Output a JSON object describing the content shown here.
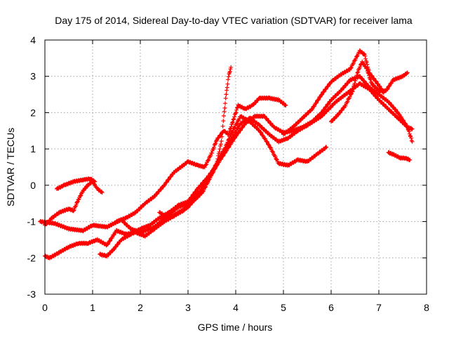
{
  "chart_data": {
    "type": "scatter",
    "title": "Day 175 of 2014, Sidereal Day-to-day VTEC variation (SDTVAR) for receiver lama",
    "xlabel": "GPS time / hours",
    "ylabel": "SDTVAR / TECUs",
    "xlim": [
      0,
      8
    ],
    "ylim": [
      -3,
      4
    ],
    "x_ticks": [
      0,
      1,
      2,
      3,
      4,
      5,
      6,
      7,
      8
    ],
    "y_ticks": [
      -3,
      -2,
      -1,
      0,
      1,
      2,
      3,
      4
    ],
    "grid": true,
    "marker": "plus",
    "color": "#ff0000",
    "series": [
      {
        "points": [
          [
            -0.1,
            -1.0
          ],
          [
            0.2,
            -1.05
          ],
          [
            0.5,
            -1.2
          ],
          [
            0.8,
            -1.25
          ],
          [
            1.0,
            -1.1
          ],
          [
            1.3,
            -1.15
          ],
          [
            1.6,
            -0.95
          ],
          [
            1.8,
            -1.2
          ],
          [
            2.0,
            -1.3
          ],
          [
            2.3,
            -1.15
          ],
          [
            2.6,
            -0.8
          ],
          [
            2.8,
            -0.6
          ],
          [
            3.0,
            -0.5
          ],
          [
            3.3,
            -0.1
          ],
          [
            3.5,
            0.35
          ],
          [
            3.7,
            0.85
          ],
          [
            3.9,
            1.25
          ],
          [
            4.1,
            1.7
          ],
          [
            4.3,
            1.85
          ],
          [
            4.5,
            1.65
          ],
          [
            4.7,
            1.4
          ],
          [
            4.9,
            1.2
          ],
          [
            5.1,
            1.3
          ],
          [
            5.3,
            1.5
          ],
          [
            5.5,
            1.65
          ],
          [
            5.8,
            1.9
          ],
          [
            6.1,
            2.3
          ],
          [
            6.4,
            2.6
          ],
          [
            6.6,
            2.8
          ],
          [
            6.8,
            2.65
          ],
          [
            7.0,
            2.35
          ],
          [
            7.2,
            2.1
          ],
          [
            7.4,
            1.85
          ],
          [
            7.6,
            1.6
          ],
          [
            7.7,
            1.55
          ]
        ]
      },
      {
        "points": [
          [
            0.0,
            -1.95
          ],
          [
            0.1,
            -2.0
          ],
          [
            0.3,
            -1.85
          ],
          [
            0.5,
            -1.7
          ],
          [
            0.7,
            -1.6
          ],
          [
            0.9,
            -1.6
          ],
          [
            1.1,
            -1.5
          ],
          [
            1.3,
            -1.65
          ],
          [
            1.5,
            -1.25
          ],
          [
            1.7,
            -1.35
          ],
          [
            1.9,
            -1.3
          ],
          [
            2.1,
            -1.4
          ],
          [
            2.3,
            -1.2
          ],
          [
            2.5,
            -1.0
          ],
          [
            2.7,
            -0.85
          ],
          [
            2.9,
            -0.7
          ],
          [
            3.1,
            -0.45
          ],
          [
            3.3,
            -0.2
          ],
          [
            3.5,
            0.3
          ],
          [
            3.7,
            0.8
          ],
          [
            3.9,
            1.4
          ],
          [
            4.1,
            1.9
          ],
          [
            4.3,
            1.75
          ],
          [
            4.5,
            1.5
          ],
          [
            4.7,
            1.1
          ],
          [
            4.9,
            0.6
          ],
          [
            5.1,
            0.55
          ],
          [
            5.3,
            0.7
          ],
          [
            5.5,
            0.65
          ],
          [
            5.7,
            0.85
          ],
          [
            5.9,
            1.05
          ]
        ]
      },
      {
        "points": [
          [
            0.0,
            -1.1
          ],
          [
            0.15,
            -0.9
          ],
          [
            0.3,
            -0.75
          ],
          [
            0.5,
            -0.65
          ],
          [
            0.6,
            -0.7
          ],
          [
            0.7,
            -0.4
          ],
          [
            0.8,
            -0.15
          ],
          [
            0.9,
            0.0
          ],
          [
            1.0,
            0.1
          ],
          [
            1.1,
            -0.1
          ],
          [
            1.2,
            -0.2
          ]
        ]
      },
      {
        "points": [
          [
            0.25,
            -0.1
          ],
          [
            0.4,
            0.0
          ],
          [
            0.6,
            0.1
          ],
          [
            0.8,
            0.15
          ],
          [
            0.95,
            0.18
          ],
          [
            1.05,
            0.1
          ]
        ]
      },
      {
        "points": [
          [
            1.15,
            -1.9
          ],
          [
            1.3,
            -1.95
          ],
          [
            1.45,
            -1.75
          ],
          [
            1.6,
            -1.5
          ],
          [
            1.8,
            -1.35
          ],
          [
            2.0,
            -1.2
          ],
          [
            2.2,
            -1.1
          ],
          [
            2.4,
            -0.9
          ],
          [
            2.6,
            -0.75
          ],
          [
            2.8,
            -0.55
          ],
          [
            3.0,
            -0.45
          ],
          [
            3.2,
            -0.1
          ],
          [
            3.4,
            0.2
          ],
          [
            3.6,
            0.55
          ],
          [
            3.8,
            0.95
          ],
          [
            4.0,
            1.35
          ],
          [
            4.2,
            1.7
          ],
          [
            4.4,
            1.9
          ],
          [
            4.6,
            1.9
          ],
          [
            4.8,
            1.6
          ],
          [
            5.0,
            1.45
          ],
          [
            5.2,
            1.5
          ],
          [
            5.4,
            1.6
          ],
          [
            5.6,
            1.75
          ],
          [
            5.8,
            2.0
          ],
          [
            6.0,
            2.35
          ],
          [
            6.2,
            2.6
          ],
          [
            6.4,
            2.9
          ],
          [
            6.6,
            3.0
          ],
          [
            6.8,
            2.7
          ],
          [
            7.0,
            2.5
          ],
          [
            7.2,
            2.3
          ],
          [
            7.4,
            2.0
          ],
          [
            7.6,
            1.6
          ],
          [
            7.7,
            1.2
          ]
        ]
      },
      {
        "points": [
          [
            1.5,
            -1.0
          ],
          [
            1.7,
            -0.9
          ],
          [
            1.9,
            -0.75
          ],
          [
            2.1,
            -0.5
          ],
          [
            2.3,
            -0.3
          ],
          [
            2.5,
            0.0
          ],
          [
            2.7,
            0.35
          ],
          [
            2.9,
            0.55
          ],
          [
            3.0,
            0.65
          ],
          [
            3.2,
            0.55
          ],
          [
            3.35,
            0.5
          ],
          [
            3.5,
            0.9
          ],
          [
            3.6,
            1.25
          ],
          [
            3.75,
            1.5
          ],
          [
            3.85,
            1.4
          ],
          [
            3.95,
            1.8
          ],
          [
            4.05,
            2.2
          ],
          [
            4.2,
            2.1
          ],
          [
            4.35,
            2.2
          ],
          [
            4.5,
            2.4
          ],
          [
            4.7,
            2.4
          ],
          [
            4.9,
            2.35
          ],
          [
            5.05,
            2.2
          ]
        ]
      },
      {
        "points": [
          [
            2.4,
            -0.75
          ],
          [
            2.6,
            -0.9
          ],
          [
            2.8,
            -0.75
          ],
          [
            3.0,
            -0.6
          ],
          [
            3.2,
            -0.3
          ],
          [
            3.4,
            0.1
          ],
          [
            3.6,
            0.6
          ],
          [
            3.7,
            1.2
          ],
          [
            3.75,
            1.9
          ],
          [
            3.8,
            2.5
          ],
          [
            3.85,
            3.0
          ],
          [
            3.9,
            3.25
          ]
        ]
      },
      {
        "points": [
          [
            5.0,
            1.4
          ],
          [
            5.2,
            1.6
          ],
          [
            5.4,
            1.85
          ],
          [
            5.6,
            2.1
          ],
          [
            5.8,
            2.5
          ],
          [
            6.0,
            2.85
          ],
          [
            6.2,
            3.05
          ],
          [
            6.4,
            3.2
          ],
          [
            6.6,
            3.7
          ],
          [
            6.7,
            3.6
          ],
          [
            6.8,
            3.1
          ],
          [
            7.0,
            2.75
          ],
          [
            7.1,
            2.55
          ]
        ]
      },
      {
        "points": [
          [
            6.0,
            1.75
          ],
          [
            6.15,
            1.95
          ],
          [
            6.3,
            2.2
          ],
          [
            6.45,
            2.6
          ],
          [
            6.55,
            3.1
          ],
          [
            6.65,
            3.4
          ],
          [
            6.75,
            3.2
          ],
          [
            6.85,
            2.8
          ],
          [
            7.0,
            2.6
          ],
          [
            7.15,
            2.6
          ],
          [
            7.3,
            2.9
          ],
          [
            7.5,
            3.0
          ],
          [
            7.6,
            3.1
          ]
        ]
      },
      {
        "points": [
          [
            7.2,
            0.9
          ],
          [
            7.3,
            0.85
          ],
          [
            7.45,
            0.75
          ],
          [
            7.55,
            0.75
          ],
          [
            7.65,
            0.7
          ]
        ]
      }
    ]
  }
}
